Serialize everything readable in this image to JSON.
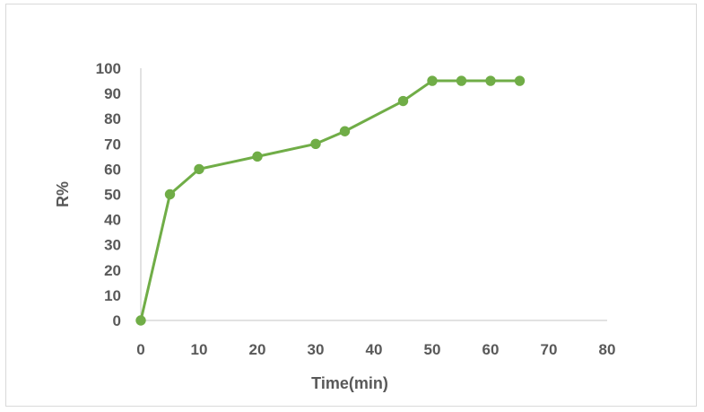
{
  "chart_data": {
    "type": "line",
    "title": "",
    "xlabel": "Time(min)",
    "ylabel": "R%",
    "xlim": [
      0,
      80
    ],
    "ylim": [
      0,
      100
    ],
    "x_ticks": [
      "0",
      "10",
      "20",
      "30",
      "40",
      "50",
      "60",
      "70",
      "80"
    ],
    "y_ticks": [
      "0",
      "10",
      "20",
      "30",
      "40",
      "50",
      "60",
      "70",
      "80",
      "90",
      "100"
    ],
    "grid": false,
    "legend": "none",
    "series": [
      {
        "color": "#70ad47",
        "marker": "circle",
        "x": [
          0,
          5,
          10,
          20,
          30,
          35,
          45,
          50,
          55,
          60,
          65
        ],
        "y": [
          0,
          50,
          60,
          65,
          70,
          75,
          87,
          95,
          95,
          95,
          95
        ]
      }
    ]
  },
  "colors": {
    "line": "#70ad47",
    "marker": "#70ad47",
    "axis": "#d9d9d9",
    "text": "#595959"
  }
}
